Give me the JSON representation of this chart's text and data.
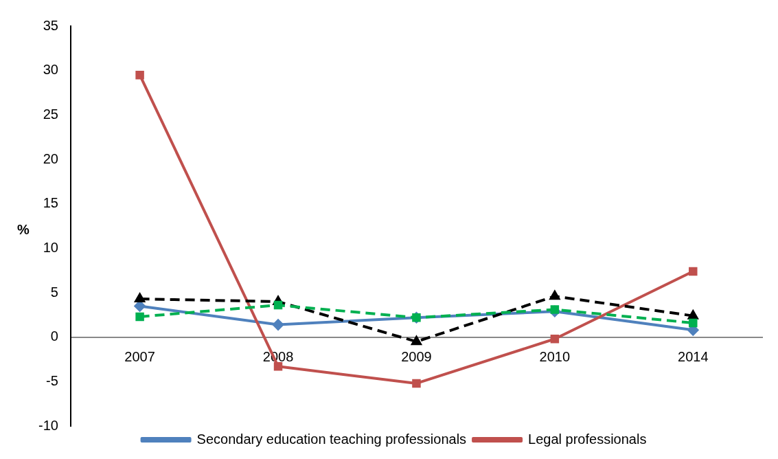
{
  "chart_data": {
    "type": "line",
    "ylabel": "%",
    "categories": [
      "2007",
      "2008",
      "2009",
      "2010",
      "2014"
    ],
    "ylim": [
      -10,
      35
    ],
    "yticks": [
      -10,
      -5,
      0,
      5,
      10,
      15,
      20,
      25,
      30,
      35
    ],
    "grid": false,
    "legend": "bottom",
    "series": [
      {
        "name": "Secondary education teaching professionals",
        "color": "#4f81bd",
        "marker": "diamond",
        "line_style": "solid",
        "values": [
          3.5,
          1.4,
          2.2,
          2.9,
          0.8
        ]
      },
      {
        "name": "Legal professionals",
        "color": "#c0504d",
        "marker": "square",
        "line_style": "solid",
        "values": [
          29.5,
          -3.3,
          -5.2,
          -0.2,
          7.4
        ]
      },
      {
        "color": "#000000",
        "marker": "triangle",
        "line_style": "dashed",
        "values": [
          4.3,
          4.0,
          -0.5,
          4.6,
          2.4
        ]
      },
      {
        "color": "#00b050",
        "marker": "square",
        "line_style": "dashed",
        "values": [
          2.3,
          3.6,
          2.2,
          3.1,
          1.6
        ]
      }
    ]
  }
}
